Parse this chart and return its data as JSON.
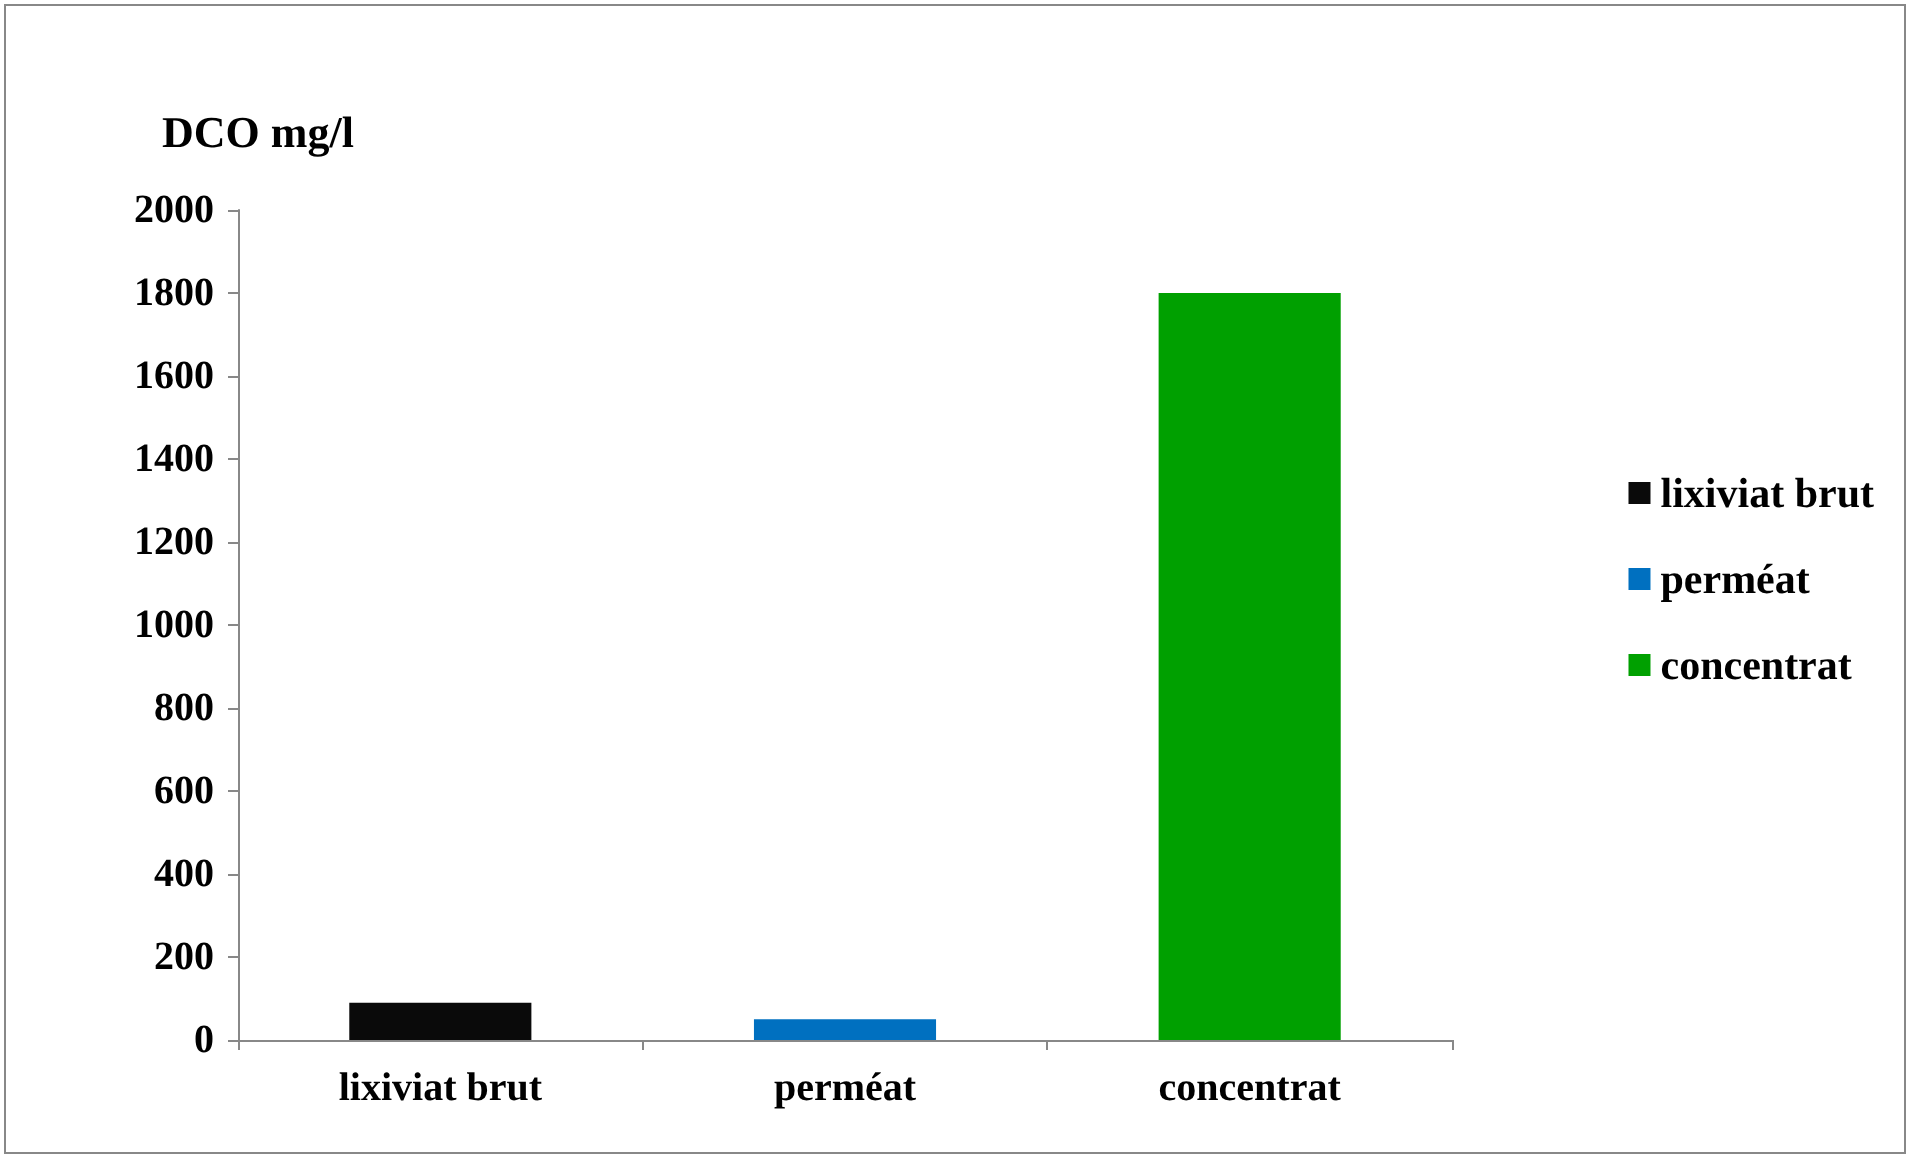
{
  "chart_data": {
    "type": "bar",
    "ylabel": "DCO mg/l",
    "categories": [
      "lixiviat brut",
      "perméat",
      "concentrat"
    ],
    "series": [
      {
        "name": "lixiviat brut",
        "color": "#0a0a0a",
        "values": [
          90,
          null,
          null
        ]
      },
      {
        "name": "perméat",
        "color": "#0070c0",
        "values": [
          null,
          50,
          null
        ]
      },
      {
        "name": "concentrat",
        "color": "#00a000",
        "values": [
          null,
          null,
          1800
        ]
      }
    ],
    "ylim": [
      0,
      2000
    ],
    "yticks": [
      0,
      200,
      400,
      600,
      800,
      1000,
      1200,
      1400,
      1600,
      1800,
      2000
    ],
    "grid": false,
    "legend": "right"
  }
}
